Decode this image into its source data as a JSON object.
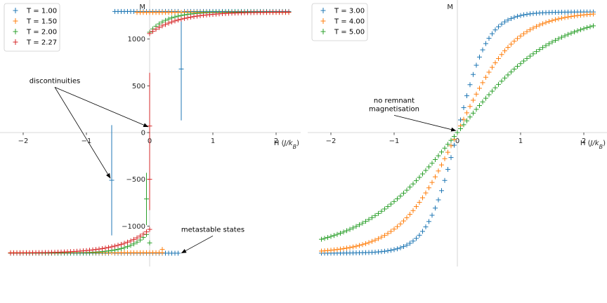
{
  "chart_data": [
    {
      "type": "scatter",
      "marker": "errorbar-plus",
      "xlabel": "H ($J/k_B$)",
      "ylabel": "M",
      "xlim": [
        -2.35,
        2.35
      ],
      "ylim": [
        -1260,
        1300
      ],
      "xticks": [
        -2,
        -1,
        0,
        1,
        2
      ],
      "yticks": [
        -1000,
        -500,
        0,
        500,
        1000
      ],
      "xtick_labels": [
        "−2",
        "−1",
        "0",
        "1",
        "2"
      ],
      "ytick_labels": [
        "−1000",
        "−500",
        "0",
        "500",
        "1000"
      ],
      "legend": {
        "placement": "top-left"
      },
      "series": [
        {
          "name": "T = 1.00",
          "color": "#1f77b4",
          "branches": [
            {
              "x_start": -2.2,
              "x_end": 0.45,
              "step": 0.05,
              "y_const": -1290,
              "x_skip": [
                -0.6
              ]
            },
            {
              "x_start": -0.55,
              "x_end": 2.2,
              "step": 0.05,
              "y_const": 1295,
              "x_skip": [
                0.5
              ]
            }
          ],
          "points": [
            {
              "x": -0.6,
              "y": -510,
              "err": 590
            },
            {
              "x": 0.5,
              "y": 680,
              "err": 550
            }
          ]
        },
        {
          "name": "T = 1.50",
          "color": "#ff7f0e",
          "branches": [
            {
              "x_start": -2.2,
              "x_end": 0.2,
              "step": 0.05,
              "y_const": -1285
            },
            {
              "x_start": -0.2,
              "x_end": 2.2,
              "step": 0.05,
              "y_const": 1285
            }
          ],
          "points": [
            {
              "x": 0.2,
              "y": -1250,
              "err": 20
            }
          ]
        },
        {
          "name": "T = 2.00",
          "color": "#2ca02c",
          "branches": [
            {
              "x_start": -2.2,
              "x_end": -0.05,
              "step": 0.05,
              "curve": "neg",
              "amp": 1290,
              "rate": 3.5,
              "sat": 0.96
            },
            {
              "x_start": 0.0,
              "x_end": 2.2,
              "step": 0.05,
              "curve": "pos",
              "amp": 1290,
              "rate": 3.5,
              "sat": 0.96
            }
          ],
          "points": [
            {
              "x": -0.05,
              "y": -710,
              "err": 280
            },
            {
              "x": 0.0,
              "y": -1180,
              "err": 20
            }
          ]
        },
        {
          "name": "T = 2.27",
          "color": "#d62728",
          "branches": [
            {
              "x_start": -2.2,
              "x_end": 0.0,
              "step": 0.05,
              "curve": "neg",
              "amp": 1290,
              "rate": 2.2,
              "sat": 0.92
            },
            {
              "x_start": 0.0,
              "x_end": 2.2,
              "step": 0.05,
              "curve": "pos",
              "amp": 1290,
              "rate": 2.2,
              "sat": 0.92
            }
          ],
          "points": [
            {
              "x": 0.0,
              "y": 70,
              "err": 570
            },
            {
              "x": 0.0,
              "y": -500,
              "err": 330
            }
          ]
        }
      ],
      "annotations": [
        {
          "text": "discontinuities",
          "text_x": -1.5,
          "text_y": 530,
          "targets": [
            [
              -0.62,
              -490
            ],
            [
              -0.02,
              60
            ]
          ]
        },
        {
          "text": "metastable states",
          "text_x": 1.0,
          "text_y": -1060,
          "targets": [
            [
              0.5,
              -1290
            ]
          ]
        }
      ]
    },
    {
      "type": "scatter",
      "marker": "errorbar-plus",
      "xlabel": "H ($J/k_B$)",
      "ylabel": "M",
      "xlim": [
        -2.35,
        2.35
      ],
      "ylim": [
        -1420,
        1420
      ],
      "xticks": [
        -2,
        -1,
        0,
        1,
        2
      ],
      "xtick_labels": [
        "−2",
        "−1",
        "0",
        "1",
        "2"
      ],
      "legend": {
        "placement": "top-left"
      },
      "series": [
        {
          "name": "T = 3.00",
          "color": "#1f77b4",
          "amp": 1290,
          "rate": 4.2,
          "x_start": -2.15,
          "x_end": 2.15,
          "step": 0.05
        },
        {
          "name": "T = 4.00",
          "color": "#ff7f0e",
          "amp": 1290,
          "rate": 2.2,
          "x_start": -2.15,
          "x_end": 2.15,
          "step": 0.05
        },
        {
          "name": "T = 5.00",
          "color": "#2ca02c",
          "amp": 1290,
          "rate": 1.3,
          "x_start": -2.15,
          "x_end": 2.15,
          "step": 0.05
        }
      ],
      "annotations": [
        {
          "text": "no remnant\nmagnetisation",
          "text_x": -1.0,
          "text_y": 320,
          "targets": [
            [
              -0.02,
              20
            ]
          ]
        }
      ]
    }
  ]
}
